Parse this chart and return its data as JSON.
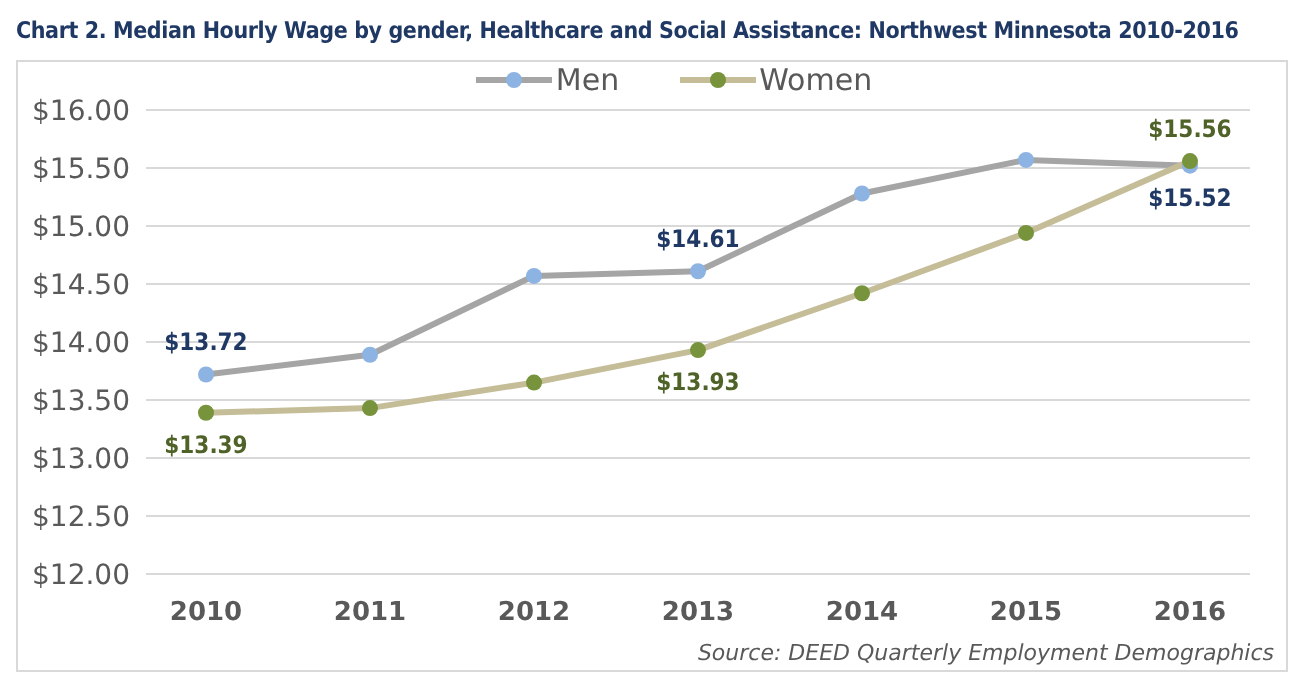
{
  "chart_data": {
    "type": "line",
    "title": "Chart 2.  Median Hourly Wage by gender, Healthcare and Social Assistance: Northwest Minnesota 2010-2016",
    "categories": [
      "2010",
      "2011",
      "2012",
      "2013",
      "2014",
      "2015",
      "2016"
    ],
    "series": [
      {
        "name": "Men",
        "color": "#a5a5a5",
        "colors": [
          "#8db3e2",
          "#8db3e2",
          "#8db3e2",
          "#8db3e2",
          "#8db3e2",
          "#8db3e2",
          "#8db3e2"
        ],
        "values": [
          13.72,
          13.89,
          14.57,
          14.61,
          15.28,
          15.57,
          15.52
        ],
        "value_labels": [
          "$13.72",
          null,
          null,
          "$14.61",
          null,
          null,
          "$15.52"
        ]
      },
      {
        "name": "Women",
        "color": "#c4bd97",
        "colors": [
          "#77933c",
          "#77933c",
          "#77933c",
          "#77933c",
          "#77933c",
          "#77933c",
          "#77933c"
        ],
        "values": [
          13.39,
          13.43,
          13.65,
          13.93,
          14.42,
          14.94,
          15.56
        ],
        "value_labels": [
          "$13.39",
          null,
          null,
          "$13.93",
          null,
          null,
          "$15.56"
        ]
      }
    ],
    "ylim": [
      12,
      16
    ],
    "yticks": [
      {
        "value": 12,
        "label": "$12.00"
      },
      {
        "value": 12.5,
        "label": "$12.50"
      },
      {
        "value": 13,
        "label": "$13.00"
      },
      {
        "value": 13.5,
        "label": "$13.50"
      },
      {
        "value": 14,
        "label": "$14.00"
      },
      {
        "value": 14.5,
        "label": "$14.50"
      },
      {
        "value": 15,
        "label": "$15.00"
      },
      {
        "value": 15.5,
        "label": "$15.50"
      },
      {
        "value": 16,
        "label": "$16.00"
      }
    ],
    "grid": "y",
    "legend": "top",
    "marker": "circle",
    "line_style": "solid",
    "annotations": [
      "Source: DEED Quarterly Employment Demographics"
    ]
  }
}
